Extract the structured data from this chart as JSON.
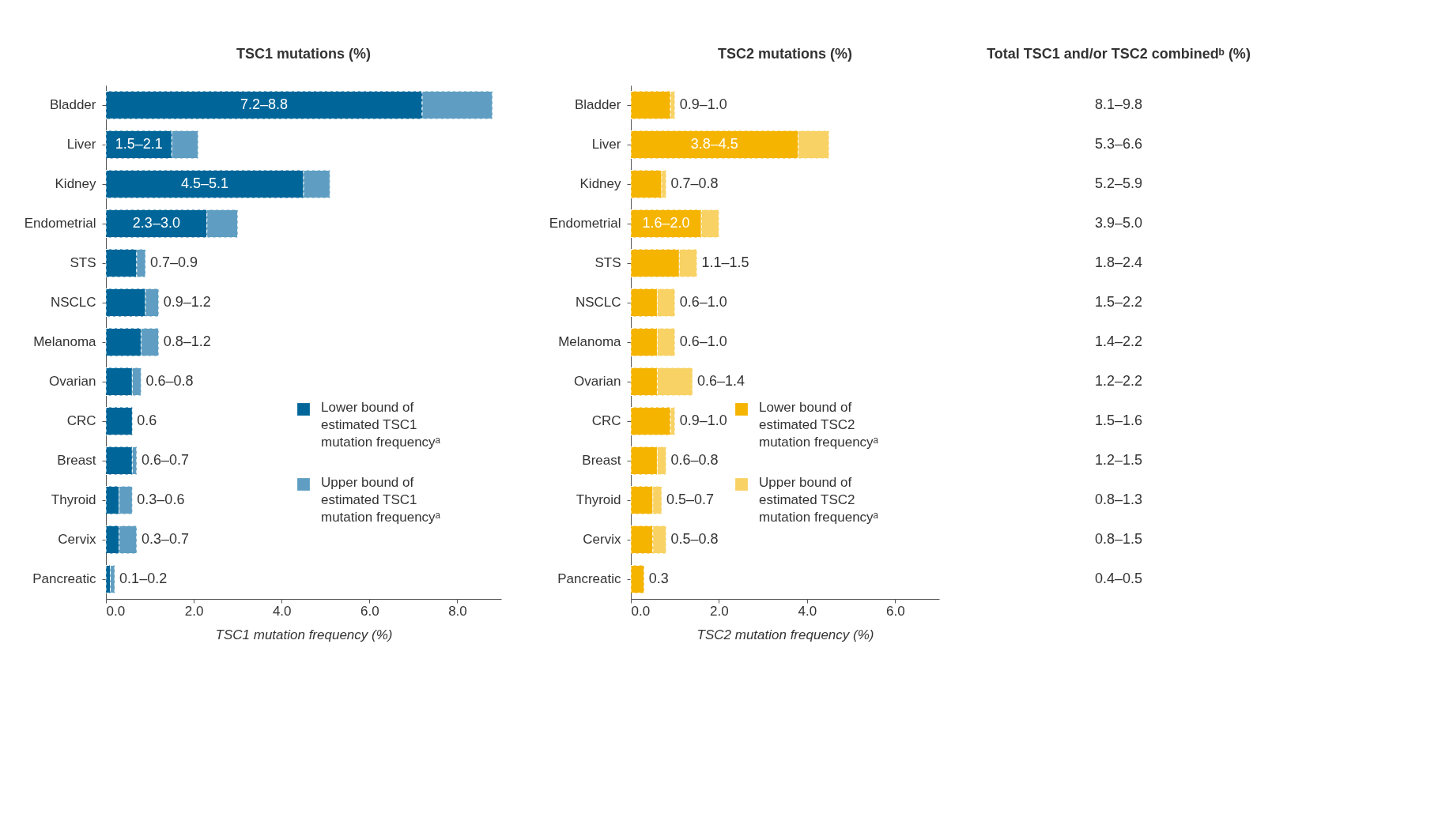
{
  "chart_data": [
    {
      "type": "bar",
      "orientation": "horizontal",
      "stacked": true,
      "title": "TSC1 mutations (%)",
      "xlabel": "TSC1 mutation frequency (%)",
      "categories": [
        "Bladder",
        "Liver",
        "Kidney",
        "Endometrial",
        "STS",
        "NSCLC",
        "Melanoma",
        "Ovarian",
        "CRC",
        "Breast",
        "Thyroid",
        "Cervix",
        "Pancreatic"
      ],
      "series": [
        {
          "name": "Lower bound of estimated TSC1 mutation frequencyᵃ",
          "color": "#006699",
          "values": [
            7.2,
            1.5,
            4.5,
            2.3,
            0.7,
            0.9,
            0.8,
            0.6,
            0.6,
            0.6,
            0.3,
            0.3,
            0.1
          ]
        },
        {
          "name": "Upper bound of estimated TSC1 mutation frequencyᵃ",
          "color": "#5f9ec2",
          "values": [
            1.6,
            0.6,
            0.6,
            0.7,
            0.2,
            0.3,
            0.4,
            0.2,
            null,
            0.1,
            0.3,
            0.4,
            0.1
          ]
        }
      ],
      "value_labels": [
        "7.2–8.8",
        "1.5–2.1",
        "4.5–5.1",
        "2.3–3.0",
        "0.7–0.9",
        "0.9–1.2",
        "0.8–1.2",
        "0.6–0.8",
        "0.6",
        "0.6–0.7",
        "0.3–0.6",
        "0.3–0.7",
        "0.1–0.2"
      ],
      "xlim": [
        0,
        9
      ],
      "xticks": [
        {
          "value": 0,
          "label": "0.0"
        },
        {
          "value": 2,
          "label": "2.0"
        },
        {
          "value": 4,
          "label": "4.0"
        },
        {
          "value": 6,
          "label": "6.0"
        },
        {
          "value": 8,
          "label": "8.0"
        }
      ],
      "grid": false,
      "legend": "bottom right"
    },
    {
      "type": "bar",
      "orientation": "horizontal",
      "stacked": true,
      "title": "TSC2 mutations (%)",
      "xlabel": "TSC2 mutation frequency (%)",
      "categories": [
        "Bladder",
        "Liver",
        "Kidney",
        "Endometrial",
        "STS",
        "NSCLC",
        "Melanoma",
        "Ovarian",
        "CRC",
        "Breast",
        "Thyroid",
        "Cervix",
        "Pancreatic"
      ],
      "series": [
        {
          "name": "Lower bound of estimated TSC2 mutation frequencyᵃ",
          "color": "#f5b400",
          "values": [
            0.9,
            3.8,
            0.7,
            1.6,
            1.1,
            0.6,
            0.6,
            0.6,
            0.9,
            0.6,
            0.5,
            0.5,
            0.3
          ]
        },
        {
          "name": "Upper bound of estimated TSC2 mutation frequencyᵃ",
          "color": "#f8d264",
          "values": [
            0.1,
            0.7,
            0.1,
            0.4,
            0.4,
            0.4,
            0.4,
            0.8,
            0.1,
            0.2,
            0.2,
            0.3,
            null
          ]
        }
      ],
      "value_labels": [
        "0.9–1.0",
        "3.8–4.5",
        "0.7–0.8",
        "1.6–2.0",
        "1.1–1.5",
        "0.6–1.0",
        "0.6–1.0",
        "0.6–1.4",
        "0.9–1.0",
        "0.6–0.8",
        "0.5–0.7",
        "0.5–0.8",
        "0.3"
      ],
      "xlim": [
        0,
        7
      ],
      "xticks": [
        {
          "value": 0,
          "label": "0.0"
        },
        {
          "value": 2,
          "label": "2.0"
        },
        {
          "value": 4,
          "label": "4.0"
        },
        {
          "value": 6,
          "label": "6.0"
        }
      ],
      "grid": false,
      "legend": "bottom right"
    },
    {
      "type": "other",
      "title": "Total TSC1 and/or TSC2 combinedᵇ (%)",
      "value_labels": [
        "8.1–9.8",
        "5.3–6.6",
        "5.2–5.9",
        "3.9–5.0",
        "1.8–2.4",
        "1.5–2.2",
        "1.4–2.2",
        "1.2–2.2",
        "1.5–1.6",
        "1.2–1.5",
        "0.8–1.3",
        "0.8–1.5",
        "0.4–0.5"
      ]
    }
  ]
}
